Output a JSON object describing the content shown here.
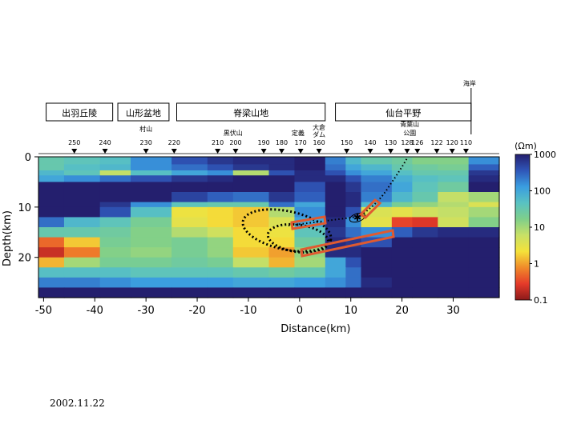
{
  "chart_data": {
    "type": "heatmap",
    "xlabel": "Distance(km)",
    "ylabel": "Depth(km)",
    "xlim": [
      -51,
      39
    ],
    "ylim": [
      0,
      28
    ],
    "x_ticks": [
      -50,
      -40,
      -30,
      -20,
      -10,
      0,
      10,
      20,
      30
    ],
    "y_ticks": [
      0,
      10,
      20
    ],
    "colorbar": {
      "unit": "(Ωm)",
      "scale": "log",
      "ticks": [
        "1000",
        "100",
        "10",
        "1",
        "0.1"
      ],
      "tick_values": [
        1000,
        100,
        10,
        1,
        0.1
      ],
      "colors": [
        "#8b1a1a",
        "#e53a2a",
        "#f08a2a",
        "#f4e23a",
        "#c8e066",
        "#7fcf8a",
        "#59c2c2",
        "#3a9de0",
        "#2f56b8",
        "#241f6e"
      ]
    },
    "x_edges": [
      -51,
      -46,
      -39,
      -33,
      -25,
      -18,
      -13,
      -6,
      -1,
      5,
      9,
      12,
      18,
      22,
      27,
      33,
      39
    ],
    "y_edges": [
      0,
      1.5,
      2.7,
      3.7,
      5,
      7,
      9,
      10,
      12,
      14,
      16,
      18,
      20,
      22,
      24,
      26,
      28
    ],
    "log_resistivity": [
      [
        1.5,
        1.6,
        1.7,
        2.2,
        2.6,
        2.8,
        2.9,
        2.9,
        3.0,
        2.3,
        1.8,
        1.5,
        1.4,
        1.2,
        1.2,
        2.2
      ],
      [
        1.5,
        1.7,
        1.8,
        2.2,
        2.4,
        2.6,
        2.8,
        2.9,
        3.0,
        2.4,
        2.0,
        1.8,
        1.5,
        1.4,
        1.3,
        2.5
      ],
      [
        1.8,
        1.6,
        0.8,
        1.7,
        2.0,
        2.2,
        0.9,
        2.6,
        2.9,
        2.6,
        2.2,
        2.0,
        1.7,
        1.5,
        1.5,
        2.8
      ],
      [
        2.0,
        2.2,
        2.4,
        2.6,
        2.8,
        2.9,
        3.0,
        3.0,
        2.9,
        2.9,
        2.6,
        2.3,
        1.9,
        1.7,
        1.6,
        2.9
      ],
      [
        3.0,
        3.0,
        3.0,
        3.0,
        3.0,
        3.0,
        3.0,
        3.0,
        2.6,
        3.0,
        2.8,
        2.4,
        2.0,
        1.6,
        1.4,
        3.0
      ],
      [
        3.0,
        3.0,
        3.0,
        3.0,
        2.7,
        2.5,
        2.4,
        2.8,
        2.5,
        3.0,
        2.9,
        2.3,
        1.8,
        1.5,
        0.8,
        1.0
      ],
      [
        3.0,
        3.0,
        2.8,
        2.2,
        1.6,
        1.5,
        1.5,
        2.4,
        2.0,
        3.0,
        2.9,
        1.8,
        1.3,
        1.1,
        0.9,
        0.6
      ],
      [
        3.0,
        3.0,
        2.6,
        1.7,
        0.4,
        0.3,
        0.2,
        0.9,
        2.2,
        3.0,
        2.6,
        0.6,
        0.5,
        0.7,
        0.8,
        1.0
      ],
      [
        2.4,
        1.8,
        1.6,
        1.3,
        0.5,
        0.3,
        0.2,
        0.6,
        2.0,
        2.9,
        2.2,
        0.5,
        -0.5,
        -0.6,
        0.7,
        1.2
      ],
      [
        1.5,
        1.5,
        1.4,
        1.2,
        0.9,
        0.7,
        0.3,
        0.4,
        1.6,
        2.8,
        2.4,
        2.2,
        2.5,
        2.8,
        2.9,
        2.9
      ],
      [
        -0.3,
        0.2,
        1.3,
        1.2,
        1.3,
        1.1,
        0.3,
        0.3,
        1.4,
        2.9,
        2.8,
        2.6,
        3.0,
        3.0,
        3.0,
        3.0
      ],
      [
        -0.7,
        -0.2,
        1.2,
        1.1,
        1.3,
        1.1,
        0.2,
        0.0,
        1.1,
        2.9,
        2.9,
        3.0,
        3.0,
        3.0,
        3.0,
        3.0
      ],
      [
        0.1,
        1.0,
        1.3,
        1.3,
        1.4,
        1.3,
        0.8,
        0.1,
        1.0,
        2.0,
        2.6,
        3.0,
        3.0,
        3.0,
        3.0,
        3.0
      ],
      [
        1.7,
        1.7,
        1.7,
        1.6,
        1.6,
        1.6,
        1.5,
        1.4,
        1.5,
        2.0,
        2.4,
        3.0,
        3.0,
        3.0,
        3.0,
        3.0
      ],
      [
        2.3,
        2.3,
        2.2,
        2.1,
        2.1,
        2.1,
        2.0,
        2.0,
        2.1,
        2.2,
        2.4,
        2.9,
        3.0,
        3.0,
        3.0,
        3.0
      ],
      [
        3.0,
        3.0,
        3.0,
        3.0,
        3.0,
        3.0,
        3.0,
        3.0,
        3.0,
        3.0,
        3.0,
        3.0,
        3.0,
        3.0,
        3.0,
        3.0
      ]
    ],
    "regions": [
      {
        "label": "出羽丘陵",
        "x0": -49.5,
        "x1": -36.5
      },
      {
        "label": "山形盆地",
        "x0": -35.5,
        "x1": -25.5
      },
      {
        "label": "脊梁山地",
        "x0": -24.0,
        "x1": 5.0
      },
      {
        "label": "仙台平野",
        "x0": 7.0,
        "x1": 33.5
      }
    ],
    "coast_label": "海岸",
    "coast_x": 33.5,
    "stations": [
      {
        "label": "250",
        "x": -44
      },
      {
        "label": "240",
        "x": -38
      },
      {
        "label": "230",
        "x": -30
      },
      {
        "label": "220",
        "x": -24.5
      },
      {
        "label": "210",
        "x": -16
      },
      {
        "label": "200",
        "x": -12.5
      },
      {
        "label": "190",
        "x": -7
      },
      {
        "label": "180",
        "x": -3.5
      },
      {
        "label": "170",
        "x": 0.2
      },
      {
        "label": "160",
        "x": 3.8
      },
      {
        "label": "150",
        "x": 9.2
      },
      {
        "label": "140",
        "x": 13.8
      },
      {
        "label": "130",
        "x": 17.8
      },
      {
        "label": "128",
        "x": 21.0
      },
      {
        "label": "126",
        "x": 23.0
      },
      {
        "label": "122",
        "x": 26.8
      },
      {
        "label": "120",
        "x": 29.8
      },
      {
        "label": "110",
        "x": 32.5
      }
    ],
    "places": [
      {
        "label": "村山",
        "x": -30
      },
      {
        "label": "黒伏山",
        "x": -13
      },
      {
        "label": "定義",
        "x": -0.3
      },
      {
        "label": "大倉",
        "x": 3.8
      },
      {
        "label": "ダム",
        "x": 3.8
      },
      {
        "label": "青葉山",
        "x": 21.5
      },
      {
        "label": "公園",
        "x": 21.5
      }
    ]
  },
  "date_label": "2002.11.22"
}
